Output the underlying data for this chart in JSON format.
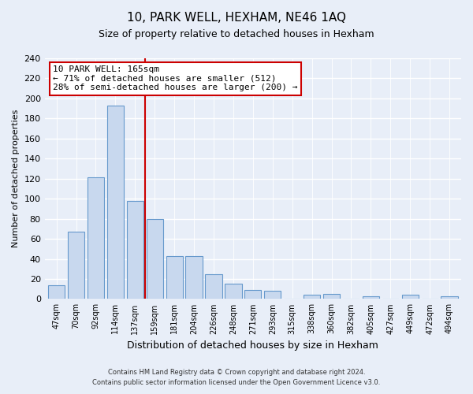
{
  "title": "10, PARK WELL, HEXHAM, NE46 1AQ",
  "subtitle": "Size of property relative to detached houses in Hexham",
  "xlabel": "Distribution of detached houses by size in Hexham",
  "ylabel": "Number of detached properties",
  "bar_labels": [
    "47sqm",
    "70sqm",
    "92sqm",
    "114sqm",
    "137sqm",
    "159sqm",
    "181sqm",
    "204sqm",
    "226sqm",
    "248sqm",
    "271sqm",
    "293sqm",
    "315sqm",
    "338sqm",
    "360sqm",
    "382sqm",
    "405sqm",
    "427sqm",
    "449sqm",
    "472sqm",
    "494sqm"
  ],
  "bar_values": [
    14,
    67,
    121,
    193,
    98,
    80,
    43,
    43,
    25,
    15,
    9,
    8,
    0,
    4,
    5,
    0,
    3,
    0,
    4,
    0,
    3
  ],
  "bar_color": "#c8d8ee",
  "bar_edge_color": "#6699cc",
  "vline_index": 4,
  "vline_color": "#cc0000",
  "ylim": [
    0,
    240
  ],
  "yticks": [
    0,
    20,
    40,
    60,
    80,
    100,
    120,
    140,
    160,
    180,
    200,
    220,
    240
  ],
  "annotation_title": "10 PARK WELL: 165sqm",
  "annotation_line1": "← 71% of detached houses are smaller (512)",
  "annotation_line2": "28% of semi-detached houses are larger (200) →",
  "annotation_box_facecolor": "#ffffff",
  "annotation_box_edgecolor": "#cc0000",
  "footer_line1": "Contains HM Land Registry data © Crown copyright and database right 2024.",
  "footer_line2": "Contains public sector information licensed under the Open Government Licence v3.0.",
  "background_color": "#e8eef8",
  "plot_bg_color": "#e8eef8"
}
